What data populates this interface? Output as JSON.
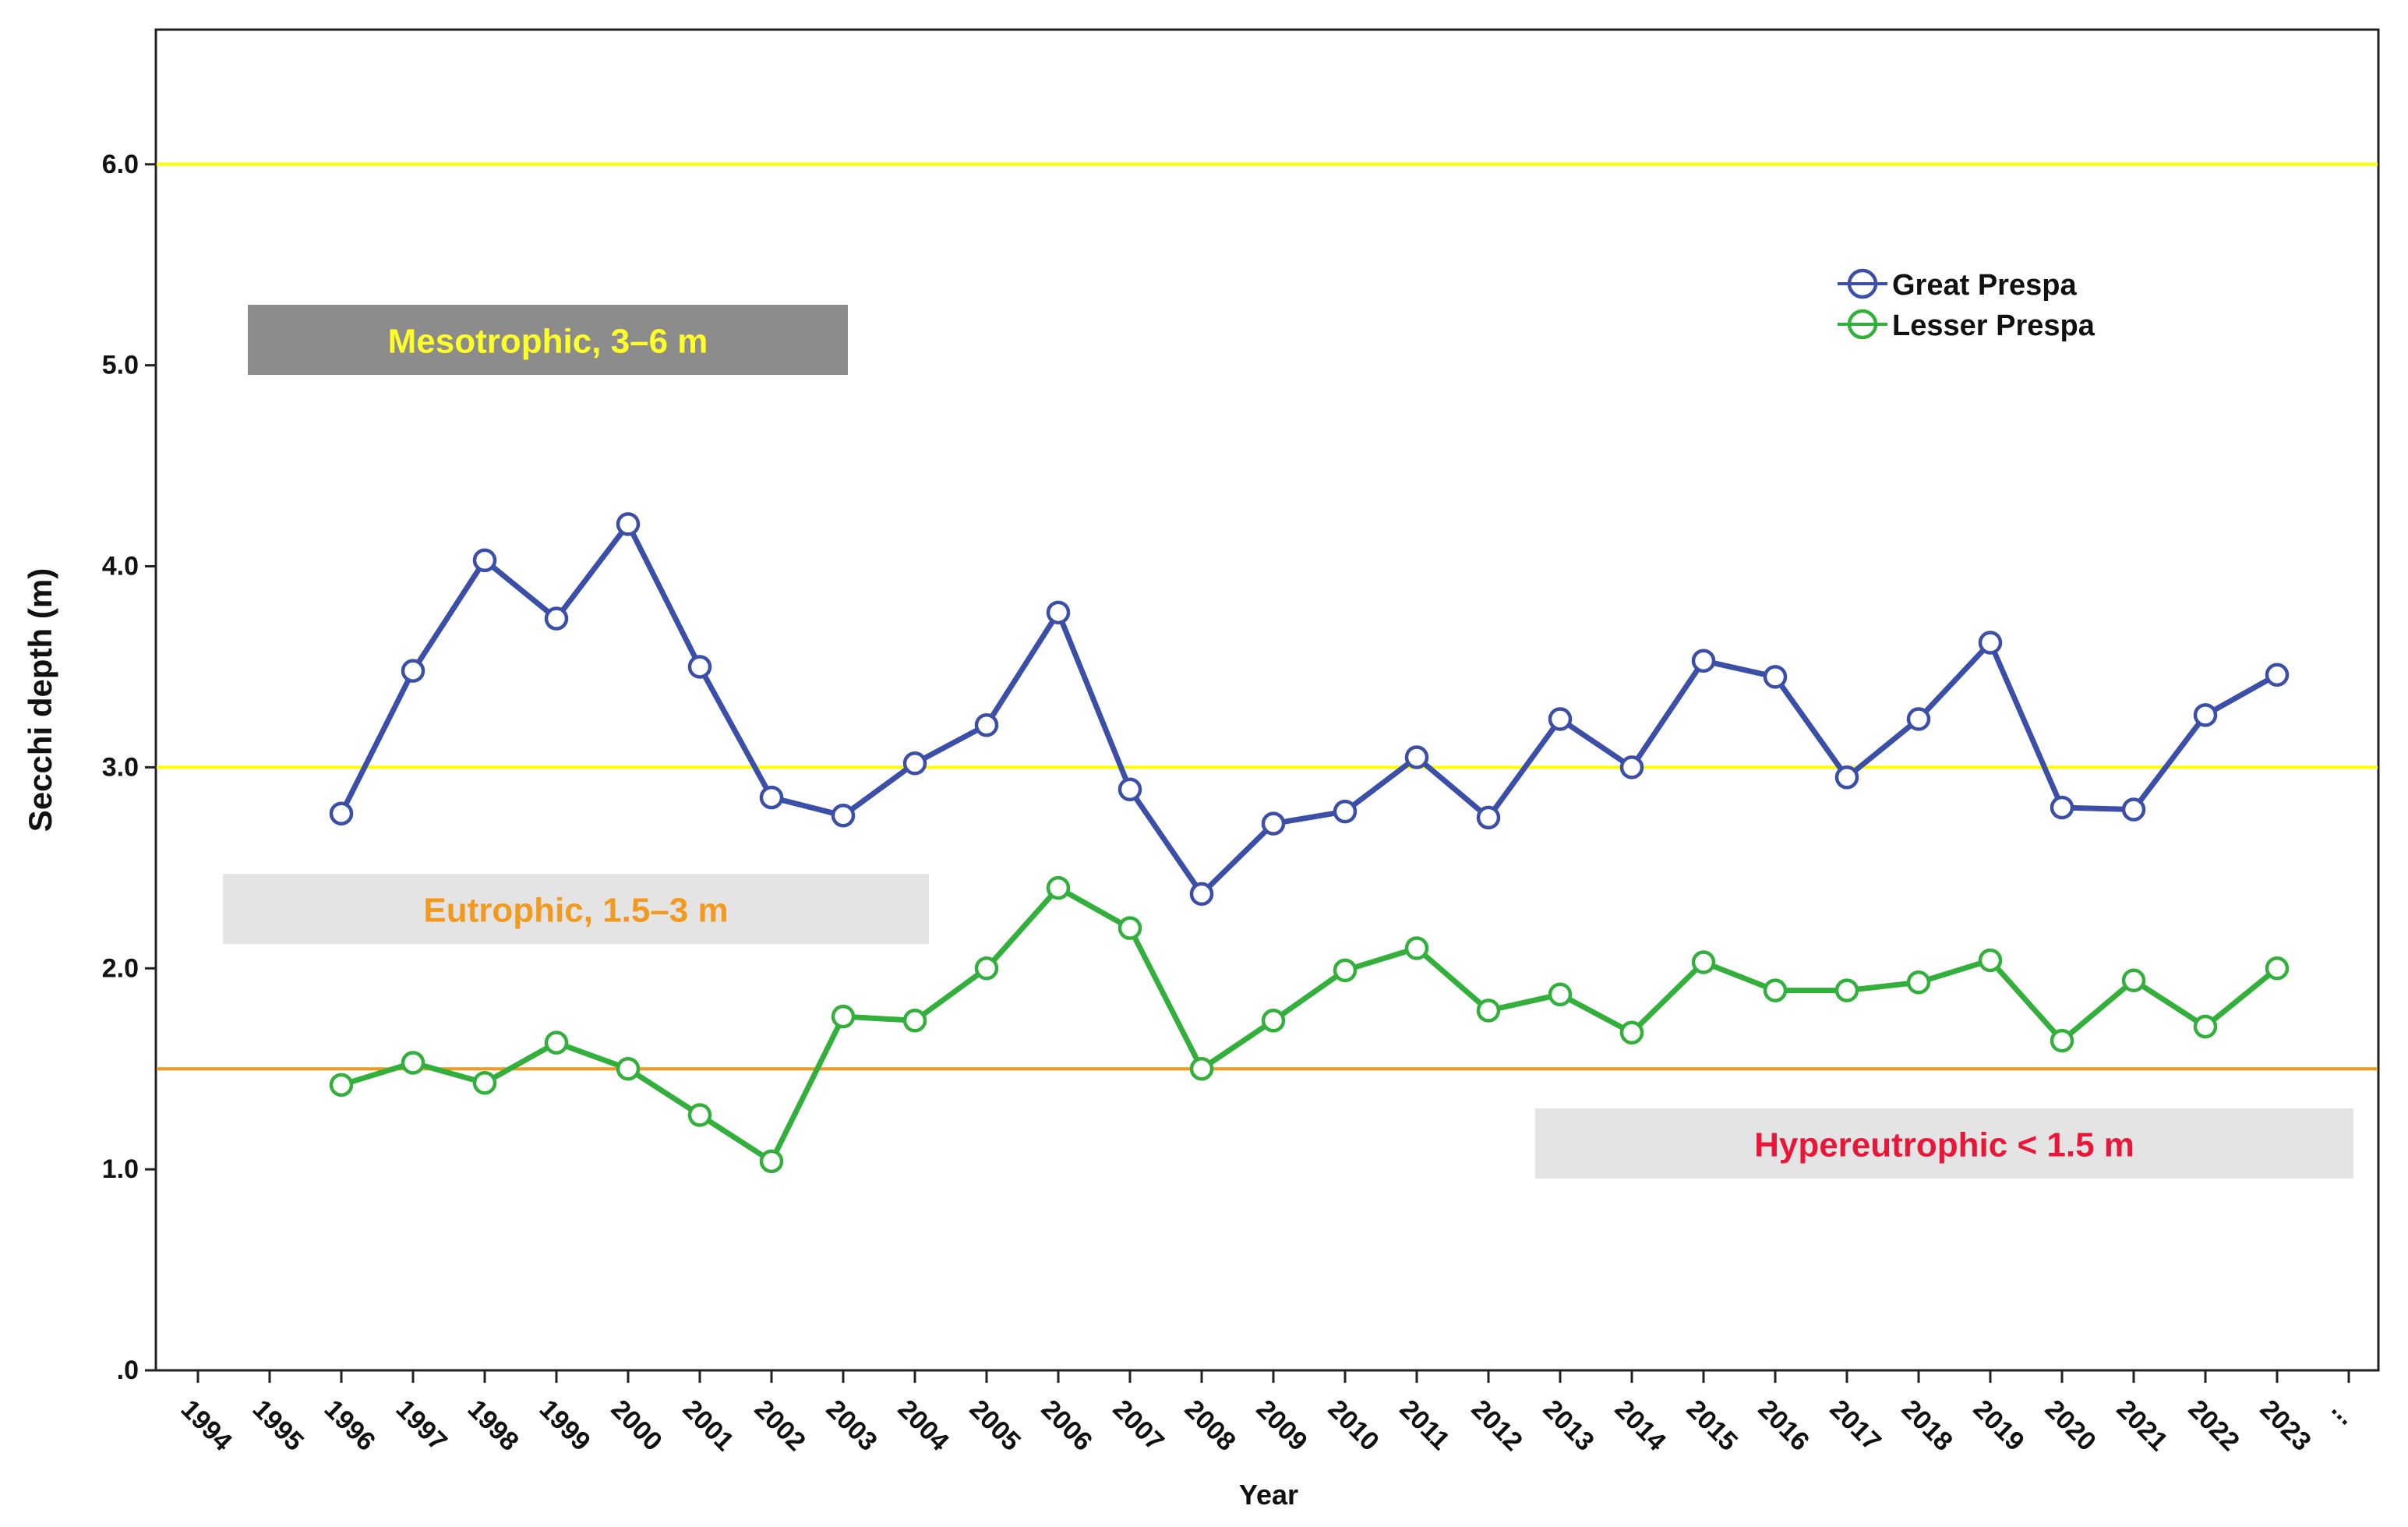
{
  "chart_data": {
    "type": "line",
    "xlabel": "Year",
    "ylabel": "Secchi depth (m)",
    "ylim": [
      0,
      6.67
    ],
    "y_ticks": [
      0,
      1,
      2,
      3,
      4,
      5,
      6
    ],
    "y_tick_labels": [
      ".0",
      "1.0",
      "2.0",
      "3.0",
      "4.0",
      "5.0",
      "6.0"
    ],
    "categories": [
      "1994",
      "1995",
      "1996",
      "1997",
      "1998",
      "1999",
      "2000",
      "2001",
      "2002",
      "2003",
      "2004",
      "2005",
      "2006",
      "2007",
      "2008",
      "2009",
      "2010",
      "2011",
      "2012",
      "2013",
      "2014",
      "2015",
      "2016",
      "2017",
      "2018",
      "2019",
      "2020",
      "2021",
      "2022",
      "2023",
      "..."
    ],
    "grid": false,
    "legend_position": "top-right",
    "series": [
      {
        "name": "Great Prespa",
        "color": "#3b4fa8",
        "values": [
          null,
          null,
          2.77,
          3.48,
          4.03,
          3.74,
          4.21,
          3.5,
          2.85,
          2.76,
          3.02,
          3.21,
          3.77,
          2.89,
          2.37,
          2.72,
          2.78,
          3.05,
          2.75,
          3.24,
          3.0,
          3.53,
          3.45,
          2.95,
          3.24,
          3.62,
          2.8,
          2.79,
          3.26,
          3.46,
          null
        ]
      },
      {
        "name": "Lesser Prespa",
        "color": "#33b03c",
        "values": [
          null,
          null,
          1.42,
          1.53,
          1.43,
          1.63,
          1.5,
          1.27,
          1.04,
          1.76,
          1.74,
          2.0,
          2.4,
          2.2,
          1.5,
          1.74,
          1.99,
          2.1,
          1.79,
          1.87,
          1.68,
          2.03,
          1.89,
          1.89,
          1.93,
          2.04,
          1.64,
          1.94,
          1.71,
          2.0,
          null
        ]
      }
    ],
    "reference_lines": [
      {
        "y": 6.0,
        "color": "#ffff00"
      },
      {
        "y": 3.0,
        "color": "#ffff00"
      },
      {
        "y": 1.5,
        "color": "#f29a1f"
      }
    ],
    "annotations": [
      {
        "text": "Mesotrophic, 3–6 m",
        "text_color": "#ffff2a",
        "box_color": "#8c8c8c"
      },
      {
        "text": "Eutrophic, 1.5–3 m",
        "text_color": "#f29a1f",
        "box_color": "#e4e4e4"
      },
      {
        "text": "Hypereutrophic < 1.5 m",
        "text_color": "#e8173a",
        "box_color": "#e4e4e4"
      }
    ]
  }
}
